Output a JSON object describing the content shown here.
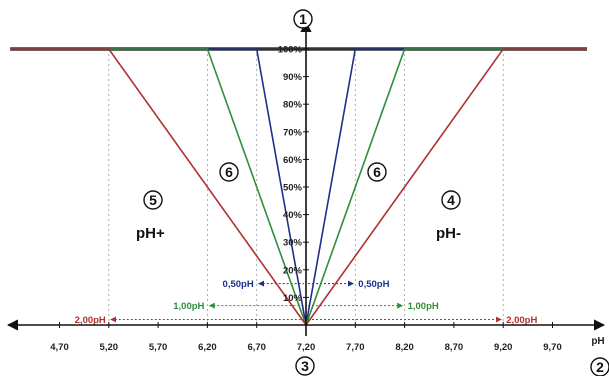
{
  "chart_data": {
    "type": "line",
    "title": "",
    "xlabel": "pH",
    "ylabel": "",
    "setpoint": 7.2,
    "xlim": [
      4.2,
      10.05
    ],
    "ylim": [
      0,
      100
    ],
    "x_ticks": [
      "4,70",
      "5,20",
      "5,70",
      "6,20",
      "6,70",
      "7,20",
      "7,70",
      "8,20",
      "8,70",
      "9,20",
      "9,70"
    ],
    "x_tick_values": [
      4.7,
      5.2,
      5.7,
      6.2,
      6.7,
      7.2,
      7.7,
      8.2,
      8.7,
      9.2,
      9.7
    ],
    "y_ticks": [
      "10%",
      "20%",
      "30%",
      "40%",
      "50%",
      "60%",
      "70%",
      "80%",
      "90%",
      "100%"
    ],
    "y_tick_values": [
      10,
      20,
      30,
      40,
      50,
      60,
      70,
      80,
      90,
      100
    ],
    "series": [
      {
        "band": "0,50pH",
        "color": "#1f2f8a",
        "x": [
          4.2,
          6.7,
          7.2,
          7.7,
          10.05
        ],
        "y": [
          100,
          100,
          0,
          100,
          100
        ]
      },
      {
        "band": "1,00pH",
        "color": "#2f8f3a",
        "x": [
          4.2,
          6.2,
          7.2,
          8.2,
          10.05
        ],
        "y": [
          100,
          100,
          0,
          100,
          100
        ]
      },
      {
        "band": "2,00pH",
        "color": "#b03030",
        "x": [
          4.2,
          5.2,
          7.2,
          9.2,
          10.05
        ],
        "y": [
          100,
          100,
          0,
          100,
          100
        ]
      }
    ],
    "bands": [
      {
        "label": "0,50pH",
        "color": "#1f2f8a",
        "width": 0.5,
        "y": 15
      },
      {
        "label": "1,00pH",
        "color": "#2f8f3a",
        "width": 1.0,
        "y": 7
      },
      {
        "label": "2,00pH",
        "color": "#b03030",
        "width": 2.0,
        "y": 2
      }
    ],
    "annotations": {
      "marker_1": "1",
      "marker_2": "2",
      "marker_3": "3",
      "marker_4": "4",
      "marker_5": "5",
      "marker_6_left": "6",
      "marker_6_right": "6",
      "label_ph_minus": "pH-",
      "label_ph_plus": "pH+"
    }
  }
}
